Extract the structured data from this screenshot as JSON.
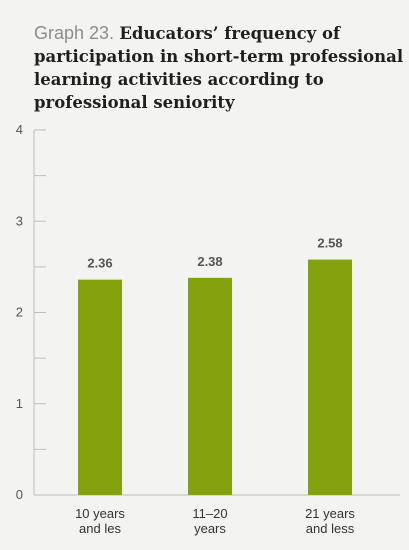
{
  "title": {
    "prefix": "Graph 23.",
    "text": "Educators’ frequency of participation in short-term professional learning activities according to professional seniority"
  },
  "colors": {
    "bar": "#84a20e",
    "background": "#f3f4f2",
    "axis": "#bdbdbd"
  },
  "chart_data": {
    "type": "bar",
    "categories": [
      [
        "10 years",
        "and les"
      ],
      [
        "11–20",
        "years"
      ],
      [
        "21 years",
        "and less"
      ]
    ],
    "values": [
      2.36,
      2.38,
      2.58
    ],
    "value_labels": [
      "2.36",
      "2.38",
      "2.58"
    ],
    "ylim": [
      0,
      4
    ],
    "yticks": [
      0,
      1,
      2,
      3,
      4
    ],
    "title": "Educators’ frequency of participation in short-term professional learning activities according to professional seniority",
    "xlabel": "",
    "ylabel": "",
    "grid": false,
    "legend": "none"
  }
}
